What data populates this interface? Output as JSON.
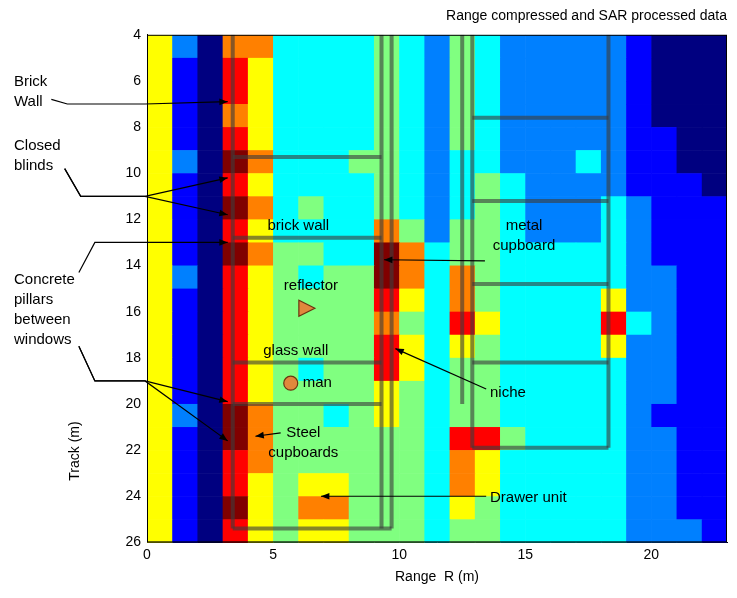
{
  "chart_data": {
    "type": "heatmap",
    "title": "Range compressed and SAR processed data",
    "x_label": "Range  R (m)",
    "y_label": "Track (m)",
    "xlim": [
      0,
      23
    ],
    "ylim": [
      26,
      4
    ],
    "xticks": [
      0,
      5,
      10,
      15,
      20
    ],
    "yticks": [
      4,
      6,
      8,
      10,
      12,
      14,
      16,
      18,
      20,
      22,
      24,
      26
    ],
    "grid": false,
    "x": [
      0.5,
      1.5,
      2.5,
      3.5,
      4.5,
      5.5,
      6.5,
      7.5,
      8.5,
      9.5,
      10.5,
      11.5,
      12.5,
      13.5,
      14.5,
      15.5,
      16.5,
      17.5,
      18.5,
      19.5,
      20.5,
      21.5,
      22.5
    ],
    "y": [
      4.5,
      5.5,
      6.5,
      7.5,
      8.5,
      9.5,
      10.5,
      11.5,
      12.5,
      13.5,
      14.5,
      15.5,
      16.5,
      17.5,
      18.5,
      19.5,
      20.5,
      21.5,
      22.5,
      23.5,
      24.5,
      25.5
    ],
    "cells": [
      [
        6,
        3,
        1,
        7,
        7,
        4,
        4,
        4,
        4,
        5,
        4,
        3,
        5,
        4,
        3,
        3,
        3,
        3,
        3,
        2,
        1,
        1,
        1
      ],
      [
        6,
        2,
        1,
        8,
        6,
        4,
        4,
        4,
        4,
        5,
        4,
        3,
        5,
        4,
        3,
        3,
        3,
        3,
        3,
        2,
        1,
        1,
        1
      ],
      [
        6,
        2,
        1,
        8,
        6,
        4,
        4,
        4,
        4,
        5,
        4,
        3,
        5,
        4,
        3,
        3,
        3,
        3,
        3,
        2,
        1,
        1,
        1
      ],
      [
        6,
        2,
        1,
        7,
        6,
        4,
        4,
        4,
        4,
        5,
        4,
        3,
        5,
        4,
        3,
        3,
        3,
        3,
        3,
        2,
        1,
        1,
        1
      ],
      [
        6,
        2,
        1,
        8,
        6,
        4,
        4,
        4,
        4,
        5,
        4,
        3,
        5,
        4,
        3,
        3,
        3,
        3,
        3,
        2,
        2,
        1,
        1
      ],
      [
        6,
        3,
        1,
        9,
        7,
        4,
        4,
        4,
        5,
        5,
        4,
        3,
        4,
        4,
        3,
        3,
        3,
        4,
        3,
        2,
        2,
        1,
        1
      ],
      [
        6,
        2,
        1,
        8,
        6,
        4,
        4,
        4,
        4,
        5,
        4,
        3,
        4,
        5,
        4,
        3,
        3,
        3,
        3,
        2,
        2,
        2,
        1
      ],
      [
        6,
        2,
        1,
        9,
        7,
        4,
        5,
        4,
        4,
        5,
        4,
        3,
        4,
        5,
        4,
        3,
        3,
        3,
        4,
        3,
        2,
        2,
        2
      ],
      [
        6,
        2,
        1,
        8,
        6,
        4,
        4,
        4,
        4,
        7,
        5,
        3,
        5,
        5,
        4,
        3,
        3,
        3,
        4,
        3,
        2,
        2,
        2
      ],
      [
        6,
        2,
        1,
        9,
        7,
        5,
        5,
        4,
        4,
        9,
        7,
        4,
        5,
        5,
        4,
        4,
        4,
        4,
        4,
        3,
        2,
        2,
        2
      ],
      [
        6,
        3,
        1,
        8,
        6,
        5,
        4,
        5,
        5,
        9,
        7,
        4,
        7,
        5,
        4,
        4,
        4,
        4,
        4,
        3,
        3,
        2,
        2
      ],
      [
        6,
        2,
        1,
        8,
        6,
        5,
        5,
        5,
        5,
        8,
        6,
        4,
        7,
        5,
        4,
        4,
        4,
        4,
        6,
        3,
        3,
        2,
        2
      ],
      [
        6,
        2,
        1,
        8,
        6,
        5,
        5,
        5,
        5,
        7,
        5,
        4,
        8,
        6,
        4,
        4,
        4,
        4,
        8,
        4,
        3,
        2,
        2
      ],
      [
        6,
        2,
        1,
        8,
        6,
        5,
        5,
        5,
        5,
        8,
        6,
        4,
        6,
        5,
        4,
        4,
        4,
        4,
        6,
        3,
        3,
        2,
        2
      ],
      [
        6,
        2,
        1,
        8,
        6,
        5,
        4,
        5,
        5,
        8,
        6,
        4,
        5,
        5,
        4,
        4,
        4,
        4,
        4,
        3,
        3,
        2,
        2
      ],
      [
        6,
        2,
        1,
        8,
        6,
        5,
        5,
        5,
        5,
        6,
        5,
        4,
        5,
        5,
        4,
        4,
        4,
        4,
        4,
        3,
        3,
        2,
        2
      ],
      [
        6,
        3,
        1,
        9,
        7,
        5,
        5,
        4,
        5,
        6,
        5,
        4,
        5,
        5,
        4,
        4,
        4,
        4,
        4,
        3,
        2,
        2,
        2
      ],
      [
        6,
        2,
        1,
        9,
        7,
        5,
        5,
        5,
        5,
        5,
        5,
        4,
        8,
        8,
        5,
        4,
        4,
        4,
        4,
        3,
        3,
        2,
        2
      ],
      [
        6,
        2,
        1,
        8,
        7,
        5,
        5,
        5,
        5,
        5,
        5,
        4,
        7,
        6,
        4,
        4,
        4,
        4,
        4,
        3,
        3,
        2,
        2
      ],
      [
        6,
        2,
        1,
        8,
        6,
        5,
        6,
        6,
        5,
        5,
        5,
        4,
        7,
        6,
        4,
        4,
        4,
        4,
        4,
        3,
        3,
        2,
        2
      ],
      [
        6,
        2,
        1,
        9,
        6,
        5,
        7,
        7,
        5,
        5,
        5,
        4,
        6,
        5,
        4,
        4,
        4,
        4,
        4,
        3,
        3,
        2,
        2
      ],
      [
        6,
        2,
        1,
        8,
        6,
        5,
        6,
        6,
        5,
        5,
        5,
        4,
        5,
        5,
        4,
        4,
        4,
        4,
        4,
        3,
        3,
        3,
        2
      ]
    ],
    "walls": [
      [
        3.4,
        4,
        3.4,
        25.4
      ],
      [
        9.3,
        4,
        9.3,
        25.4
      ],
      [
        9.7,
        4,
        9.7,
        25.4
      ],
      [
        3.4,
        9.3,
        9.3,
        9.3
      ],
      [
        3.4,
        12.8,
        9.3,
        12.8
      ],
      [
        3.4,
        18.2,
        9.3,
        18.2
      ],
      [
        3.4,
        20,
        9.3,
        20
      ],
      [
        3.4,
        25.4,
        9.7,
        25.4
      ],
      [
        12.5,
        4,
        12.5,
        20
      ],
      [
        12.9,
        4,
        12.9,
        21.9
      ],
      [
        18.3,
        4,
        18.3,
        21.9
      ],
      [
        12.9,
        7.6,
        18.3,
        7.6
      ],
      [
        12.9,
        11.2,
        18.3,
        11.2
      ],
      [
        12.9,
        14.8,
        18.3,
        14.8
      ],
      [
        12.9,
        18.2,
        18.3,
        18.2
      ],
      [
        12.9,
        21.9,
        18.3,
        21.9
      ]
    ],
    "annotations": [
      {
        "text": "Brick Wall",
        "points": [
          [
            3.2,
            6.9
          ]
        ]
      },
      {
        "text": "Closed blinds",
        "points": [
          [
            3.2,
            10.2
          ],
          [
            3.2,
            11.8
          ]
        ]
      },
      {
        "text": "Concrete pillars between windows",
        "points": [
          [
            3.2,
            13.0
          ],
          [
            3.2,
            19.9
          ],
          [
            3.2,
            21.6
          ]
        ]
      },
      {
        "text": "brick wall",
        "points": [
          [
            6.0,
            12.8
          ]
        ]
      },
      {
        "text": "metal cupboard",
        "points": [
          [
            9.4,
            13.75
          ]
        ]
      },
      {
        "text": "reflector",
        "points": [
          [
            6.3,
            15.85
          ]
        ],
        "marker": "triangle",
        "color": "#e0883c"
      },
      {
        "text": "glass wall",
        "points": [
          [
            5.9,
            18.2
          ]
        ]
      },
      {
        "text": "man",
        "points": [
          [
            5.7,
            19.1
          ]
        ],
        "marker": "circle",
        "color": "#e0883c"
      },
      {
        "text": "niche",
        "points": [
          [
            9.85,
            17.6
          ]
        ]
      },
      {
        "text": "Steel cupboards",
        "points": [
          [
            4.3,
            21.4
          ]
        ]
      },
      {
        "text": "Drawer unit",
        "points": [
          [
            6.9,
            24.0
          ]
        ]
      }
    ]
  }
}
